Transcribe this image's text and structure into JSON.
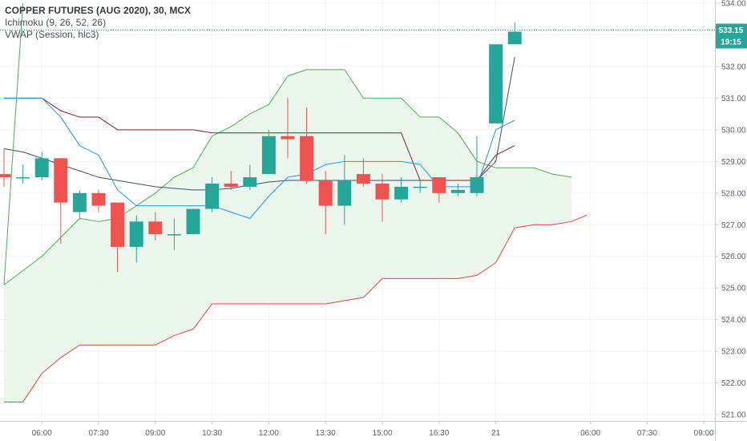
{
  "legend": {
    "title": "COPPER FUTURES (AUG 2020), 30, MCX",
    "ichimoku": "Ichimoku (9, 26, 52, 26)",
    "vwap": "VWAP (Session, hlc3)"
  },
  "price_badge": {
    "price": "533.15",
    "countdown": "19:15"
  },
  "colors": {
    "up": "#26a69a",
    "down": "#ef5350",
    "conversion": "#2196f3",
    "base": "#8b1e2a",
    "lagging": "#4caf50",
    "span_a": "#4caf50",
    "span_b": "#f44336",
    "cloud_fill": "#e8f5e9",
    "vwap": "#3d4f6b",
    "grid": "#f0f3fa",
    "axis": "#5d606b"
  },
  "chart_data": {
    "type": "candlestick",
    "title": "COPPER FUTURES (AUG 2020), 30, MCX",
    "ylim": [
      520.8,
      534.1
    ],
    "y_ticks": [
      "521.00",
      "522.00",
      "523.00",
      "524.00",
      "525.00",
      "526.00",
      "527.00",
      "528.00",
      "529.00",
      "530.00",
      "531.00",
      "532.00",
      "533.00",
      "534.00"
    ],
    "x_ticks": [
      {
        "i": 2,
        "label": "06:00"
      },
      {
        "i": 5,
        "label": "07:30"
      },
      {
        "i": 8,
        "label": "09:00"
      },
      {
        "i": 11,
        "label": "10:30"
      },
      {
        "i": 14,
        "label": "12:00"
      },
      {
        "i": 17,
        "label": "13:30"
      },
      {
        "i": 20,
        "label": "15:00"
      },
      {
        "i": 23,
        "label": "16:30"
      },
      {
        "i": 26,
        "label": "21"
      },
      {
        "i": 31,
        "label": "06:00"
      },
      {
        "i": 34,
        "label": "07:30"
      },
      {
        "i": 37,
        "label": "09:00"
      }
    ],
    "candles": [
      {
        "o": 528.6,
        "h": 529.4,
        "l": 528.2,
        "c": 528.5
      },
      {
        "o": 528.5,
        "h": 528.9,
        "l": 528.3,
        "c": 528.5
      },
      {
        "o": 528.5,
        "h": 529.3,
        "l": 528.4,
        "c": 529.1
      },
      {
        "o": 529.1,
        "h": 529.1,
        "l": 526.4,
        "c": 527.7
      },
      {
        "o": 527.4,
        "h": 528.1,
        "l": 527.2,
        "c": 528.0
      },
      {
        "o": 528.0,
        "h": 528.1,
        "l": 527.4,
        "c": 527.6
      },
      {
        "o": 527.7,
        "h": 527.7,
        "l": 525.5,
        "c": 526.3
      },
      {
        "o": 526.3,
        "h": 527.3,
        "l": 525.8,
        "c": 527.1
      },
      {
        "o": 527.1,
        "h": 527.4,
        "l": 526.5,
        "c": 526.7
      },
      {
        "o": 526.7,
        "h": 527.2,
        "l": 526.2,
        "c": 526.7
      },
      {
        "o": 526.7,
        "h": 527.5,
        "l": 526.7,
        "c": 527.5
      },
      {
        "o": 527.5,
        "h": 528.5,
        "l": 527.4,
        "c": 528.3
      },
      {
        "o": 528.3,
        "h": 528.7,
        "l": 528.1,
        "c": 528.2
      },
      {
        "o": 528.2,
        "h": 528.9,
        "l": 528.1,
        "c": 528.5
      },
      {
        "o": 528.6,
        "h": 530.0,
        "l": 528.6,
        "c": 529.8
      },
      {
        "o": 529.8,
        "h": 531.0,
        "l": 529.1,
        "c": 529.7
      },
      {
        "o": 529.8,
        "h": 530.7,
        "l": 528.3,
        "c": 528.4
      },
      {
        "o": 528.4,
        "h": 528.7,
        "l": 526.7,
        "c": 527.6
      },
      {
        "o": 527.6,
        "h": 529.2,
        "l": 527.0,
        "c": 528.4
      },
      {
        "o": 528.6,
        "h": 529.1,
        "l": 528.2,
        "c": 528.3
      },
      {
        "o": 528.3,
        "h": 528.6,
        "l": 527.1,
        "c": 527.8
      },
      {
        "o": 527.8,
        "h": 528.5,
        "l": 527.7,
        "c": 528.2
      },
      {
        "o": 528.2,
        "h": 528.4,
        "l": 528.0,
        "c": 528.2
      },
      {
        "o": 528.5,
        "h": 528.5,
        "l": 527.7,
        "c": 528.0
      },
      {
        "o": 528.0,
        "h": 528.3,
        "l": 527.9,
        "c": 528.1
      },
      {
        "o": 528.0,
        "h": 529.8,
        "l": 527.9,
        "c": 528.5
      },
      {
        "o": 530.2,
        "h": 532.7,
        "l": 530.2,
        "c": 532.7
      },
      {
        "o": 532.7,
        "h": 533.4,
        "l": 532.7,
        "c": 533.1
      }
    ],
    "conversion_line": [
      [
        0,
        531.0
      ],
      [
        2,
        531.0
      ],
      [
        3,
        530.4
      ],
      [
        4,
        529.5
      ],
      [
        5,
        529.2
      ],
      [
        6,
        528.1
      ],
      [
        7,
        527.6
      ],
      [
        8,
        527.6
      ],
      [
        9,
        527.6
      ],
      [
        10,
        527.6
      ],
      [
        11,
        527.6
      ],
      [
        12,
        527.4
      ],
      [
        13,
        527.2
      ],
      [
        14,
        527.9
      ],
      [
        15,
        528.5
      ],
      [
        16,
        528.6
      ],
      [
        17,
        528.9
      ],
      [
        18,
        529.0
      ],
      [
        19,
        529.0
      ],
      [
        20,
        529.0
      ],
      [
        21,
        529.0
      ],
      [
        22,
        528.9
      ],
      [
        23,
        528.2
      ],
      [
        24,
        528.2
      ],
      [
        25,
        528.2
      ],
      [
        26,
        530.0
      ],
      [
        27,
        530.3
      ]
    ],
    "base_line": [
      [
        0,
        531.0
      ],
      [
        2,
        531.0
      ],
      [
        3,
        530.6
      ],
      [
        4,
        530.4
      ],
      [
        5,
        530.4
      ],
      [
        6,
        530.0
      ],
      [
        7,
        530.0
      ],
      [
        8,
        530.0
      ],
      [
        9,
        530.0
      ],
      [
        10,
        530.0
      ],
      [
        11,
        529.9
      ],
      [
        12,
        529.9
      ],
      [
        13,
        529.9
      ],
      [
        14,
        529.9
      ],
      [
        15,
        529.9
      ],
      [
        16,
        529.9
      ],
      [
        17,
        529.9
      ],
      [
        18,
        529.9
      ],
      [
        19,
        529.9
      ],
      [
        20,
        529.9
      ],
      [
        21,
        529.9
      ],
      [
        22,
        528.4
      ],
      [
        23,
        528.4
      ],
      [
        24,
        528.4
      ],
      [
        25,
        528.4
      ],
      [
        26,
        529.2
      ],
      [
        27,
        529.5
      ]
    ],
    "vwap_line": [
      [
        0,
        529.4
      ],
      [
        1,
        529.3
      ],
      [
        2,
        529.1
      ],
      [
        3,
        528.9
      ],
      [
        4,
        528.7
      ],
      [
        5,
        528.5
      ],
      [
        6,
        528.4
      ],
      [
        7,
        528.3
      ],
      [
        8,
        528.2
      ],
      [
        9,
        528.15
      ],
      [
        10,
        528.1
      ],
      [
        11,
        528.1
      ],
      [
        12,
        528.15
      ],
      [
        13,
        528.25
      ],
      [
        14,
        528.35
      ],
      [
        15,
        528.4
      ],
      [
        16,
        528.4
      ],
      [
        17,
        528.4
      ],
      [
        18,
        528.4
      ],
      [
        19,
        528.4
      ],
      [
        20,
        528.4
      ],
      [
        21,
        528.4
      ],
      [
        22,
        528.4
      ],
      [
        23,
        528.4
      ],
      [
        24,
        528.4
      ],
      [
        25,
        528.4
      ],
      [
        26,
        529.0
      ],
      [
        27,
        532.3
      ]
    ],
    "lagging_span": [
      [
        0,
        525.1
      ],
      [
        1,
        534.0
      ]
    ],
    "leading_span_a": [
      [
        0,
        525.1
      ],
      [
        2,
        526.0
      ],
      [
        3,
        526.6
      ],
      [
        4,
        527.2
      ],
      [
        5,
        527.1
      ],
      [
        6,
        527.2
      ],
      [
        7,
        527.6
      ],
      [
        8,
        528.0
      ],
      [
        9,
        528.5
      ],
      [
        10,
        528.8
      ],
      [
        11,
        529.8
      ],
      [
        12,
        530.1
      ],
      [
        13,
        530.5
      ],
      [
        14,
        530.8
      ],
      [
        15,
        531.7
      ],
      [
        16,
        531.9
      ],
      [
        17,
        531.9
      ],
      [
        18,
        531.9
      ],
      [
        19,
        531.0
      ],
      [
        20,
        531.0
      ],
      [
        21,
        531.0
      ],
      [
        22,
        530.4
      ],
      [
        23,
        530.4
      ],
      [
        24,
        529.9
      ],
      [
        25,
        529.0
      ],
      [
        26,
        528.8
      ],
      [
        27,
        528.8
      ],
      [
        28,
        528.8
      ],
      [
        29,
        528.6
      ],
      [
        30,
        528.5
      ]
    ],
    "leading_span_b": [
      [
        0,
        521.4
      ],
      [
        1,
        521.4
      ],
      [
        2,
        522.3
      ],
      [
        3,
        522.8
      ],
      [
        4,
        523.2
      ],
      [
        5,
        523.2
      ],
      [
        6,
        523.2
      ],
      [
        7,
        523.2
      ],
      [
        8,
        523.2
      ],
      [
        9,
        523.5
      ],
      [
        10,
        523.7
      ],
      [
        11,
        524.5
      ],
      [
        12,
        524.5
      ],
      [
        13,
        524.5
      ],
      [
        14,
        524.5
      ],
      [
        15,
        524.5
      ],
      [
        16,
        524.5
      ],
      [
        17,
        524.5
      ],
      [
        18,
        524.6
      ],
      [
        19,
        524.7
      ],
      [
        20,
        525.3
      ],
      [
        21,
        525.3
      ],
      [
        22,
        525.3
      ],
      [
        23,
        525.3
      ],
      [
        24,
        525.3
      ],
      [
        25,
        525.4
      ],
      [
        26,
        525.8
      ],
      [
        27,
        526.9
      ],
      [
        28,
        527.0
      ],
      [
        29,
        527.0
      ],
      [
        30,
        527.1
      ],
      [
        30.8,
        527.3
      ]
    ]
  }
}
